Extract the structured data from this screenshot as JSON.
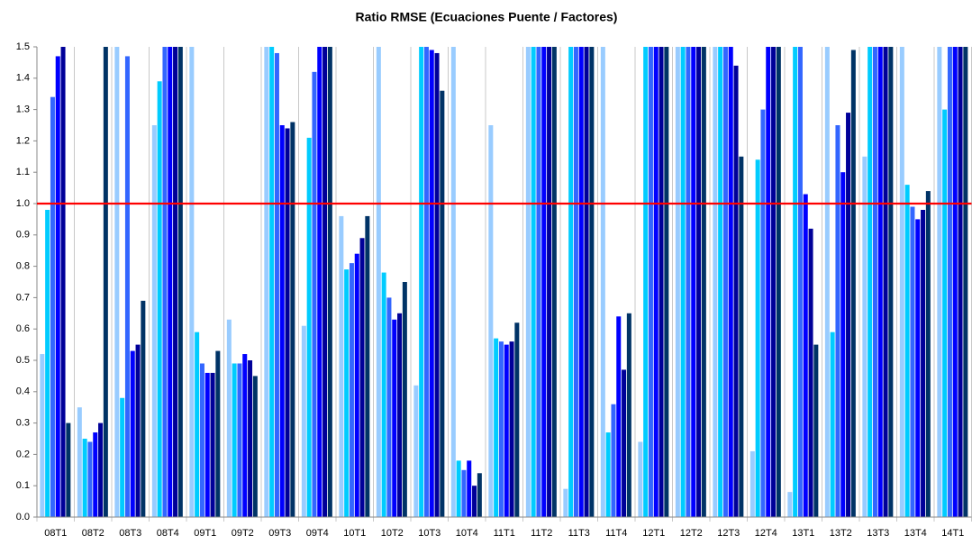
{
  "chart_data": {
    "type": "bar",
    "title": "Ratio RMSE (Ecuaciones Puente / Factores)",
    "categories": [
      "08T1",
      "08T2",
      "08T3",
      "08T4",
      "09T1",
      "09T2",
      "09T3",
      "09T4",
      "10T1",
      "10T2",
      "10T3",
      "10T4",
      "11T1",
      "11T2",
      "11T3",
      "11T4",
      "12T1",
      "12T2",
      "12T3",
      "12T4",
      "13T1",
      "13T2",
      "13T3",
      "13T4",
      "14T1"
    ],
    "series": [
      {
        "color": "#99ccff",
        "values": [
          0.52,
          0.35,
          1.5,
          1.25,
          1.5,
          0.63,
          1.5,
          0.61,
          0.96,
          1.5,
          0.42,
          1.5,
          1.25,
          1.5,
          0.09,
          1.5,
          0.24,
          1.5,
          1.5,
          0.21,
          0.08,
          1.5,
          1.15,
          1.5,
          1.5
        ]
      },
      {
        "color": "#00ccff",
        "values": [
          0.98,
          0.25,
          0.38,
          1.39,
          0.59,
          0.49,
          1.5,
          1.21,
          0.79,
          0.78,
          1.5,
          0.18,
          0.57,
          1.5,
          1.5,
          0.27,
          1.5,
          1.5,
          1.5,
          1.14,
          1.5,
          0.59,
          1.5,
          1.06,
          1.3
        ]
      },
      {
        "color": "#3366ff",
        "values": [
          1.34,
          0.24,
          1.47,
          1.5,
          0.49,
          0.49,
          1.48,
          1.42,
          0.81,
          0.7,
          1.5,
          0.15,
          0.56,
          1.5,
          1.5,
          0.36,
          1.5,
          1.5,
          1.5,
          1.3,
          1.5,
          1.25,
          1.5,
          0.99,
          1.5
        ]
      },
      {
        "color": "#0000ff",
        "values": [
          1.47,
          0.27,
          0.53,
          1.5,
          0.46,
          0.52,
          1.25,
          1.5,
          0.84,
          0.63,
          1.49,
          0.18,
          0.55,
          1.5,
          1.5,
          0.64,
          1.5,
          1.5,
          1.5,
          1.5,
          1.03,
          1.1,
          1.5,
          0.95,
          1.5
        ]
      },
      {
        "color": "#000099",
        "values": [
          1.5,
          0.3,
          0.55,
          1.5,
          0.46,
          0.5,
          1.24,
          1.5,
          0.89,
          0.65,
          1.48,
          0.1,
          0.56,
          1.5,
          1.5,
          0.47,
          1.5,
          1.5,
          1.44,
          1.5,
          0.92,
          1.29,
          1.5,
          0.98,
          1.5
        ]
      },
      {
        "color": "#003366",
        "values": [
          0.3,
          1.5,
          0.69,
          1.5,
          0.53,
          0.45,
          1.26,
          1.5,
          0.96,
          0.75,
          1.36,
          0.14,
          0.62,
          1.5,
          1.5,
          0.65,
          1.5,
          1.5,
          1.15,
          1.5,
          0.55,
          1.49,
          1.5,
          1.04,
          1.5
        ]
      }
    ],
    "ylim": [
      0,
      1.5
    ],
    "yticks": [
      {
        "value": 0,
        "label": "0.0"
      },
      0.1,
      0.2,
      0.3,
      0.4,
      0.5,
      0.6,
      0.7,
      0.8,
      0.9,
      {
        "value": 1,
        "label": "1.0"
      },
      1.1,
      1.2,
      1.3,
      1.4,
      1.5
    ],
    "reference_line": {
      "value": 1,
      "color": "#ff0000"
    }
  }
}
